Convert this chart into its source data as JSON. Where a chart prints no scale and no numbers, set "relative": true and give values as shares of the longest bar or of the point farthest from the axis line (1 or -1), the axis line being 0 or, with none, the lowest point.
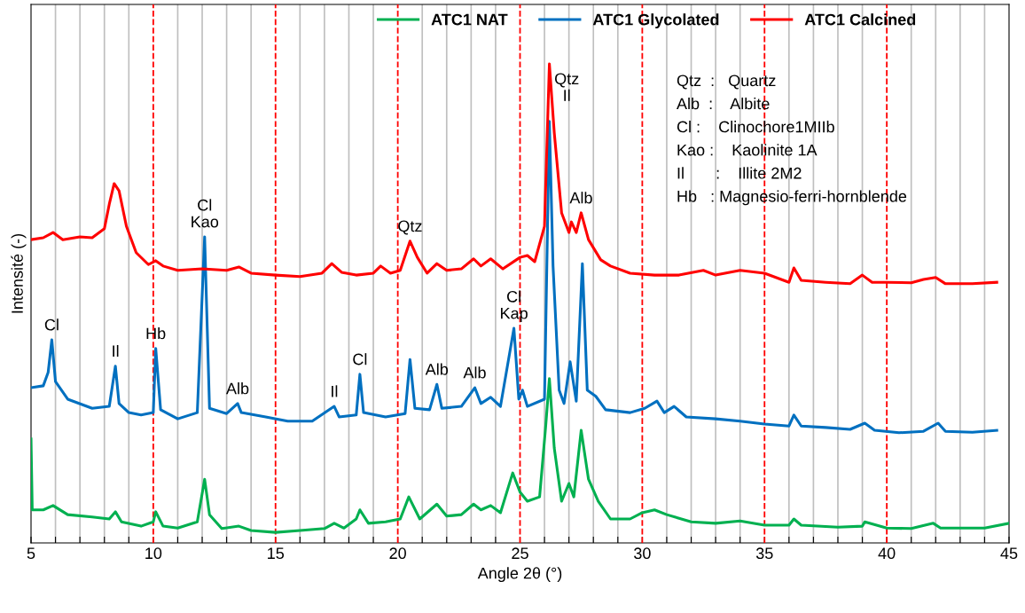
{
  "chart_data": {
    "type": "line",
    "relative": true,
    "xlabel": "Angle 2θ (°)",
    "ylabel": "Intensité (-)",
    "xlim": [
      5,
      45
    ],
    "xticks": [
      5,
      {
        "value": 6,
        "label": null
      },
      {
        "value": 7,
        "label": null
      },
      {
        "value": 8,
        "label": null
      },
      {
        "value": 9,
        "label": null
      },
      10,
      {
        "value": 11,
        "label": null
      },
      {
        "value": 12,
        "label": null
      },
      {
        "value": 13,
        "label": null
      },
      {
        "value": 14,
        "label": null
      },
      15,
      {
        "value": 16,
        "label": null
      },
      {
        "value": 17,
        "label": null
      },
      {
        "value": 18,
        "label": null
      },
      {
        "value": 19,
        "label": null
      },
      20,
      {
        "value": 21,
        "label": null
      },
      {
        "value": 22,
        "label": null
      },
      {
        "value": 23,
        "label": null
      },
      {
        "value": 24,
        "label": null
      },
      25,
      {
        "value": 26,
        "label": null
      },
      {
        "value": 27,
        "label": null
      },
      {
        "value": 28,
        "label": null
      },
      {
        "value": 29,
        "label": null
      },
      30,
      {
        "value": 31,
        "label": null
      },
      {
        "value": 32,
        "label": null
      },
      {
        "value": 33,
        "label": null
      },
      {
        "value": 34,
        "label": null
      },
      35,
      {
        "value": 36,
        "label": null
      },
      {
        "value": 37,
        "label": null
      },
      {
        "value": 38,
        "label": null
      },
      {
        "value": 39,
        "label": null
      },
      40,
      {
        "value": 41,
        "label": null
      },
      {
        "value": 42,
        "label": null
      },
      {
        "value": 43,
        "label": null
      },
      {
        "value": 44,
        "label": null
      },
      45
    ],
    "grid": "x",
    "legend": "top",
    "tick_labels": "x",
    "series": [
      {
        "name": "ATC1 NAT",
        "color": "#00b050",
        "x": [
          5.0,
          5.05,
          5.5,
          5.9,
          6.5,
          7.5,
          8.2,
          8.45,
          8.7,
          9.5,
          10.0,
          10.1,
          10.4,
          11.0,
          11.8,
          12.1,
          12.3,
          12.8,
          13.5,
          14.0,
          15.0,
          16.0,
          17.0,
          17.4,
          17.8,
          18.3,
          18.45,
          18.8,
          19.5,
          20.1,
          20.45,
          20.9,
          21.6,
          22.0,
          22.6,
          23.1,
          23.4,
          23.8,
          24.2,
          24.7,
          25.0,
          25.3,
          25.8,
          26.05,
          26.2,
          26.4,
          26.7,
          27.0,
          27.2,
          27.5,
          27.8,
          28.2,
          28.7,
          29.5,
          30.0,
          30.5,
          31,
          32,
          33,
          34,
          35,
          36,
          36.2,
          36.5,
          38,
          39,
          39.1,
          40,
          41,
          41.9,
          42.2,
          44,
          45
        ],
        "values": [
          0.217,
          0.069,
          0.069,
          0.078,
          0.059,
          0.054,
          0.05,
          0.065,
          0.044,
          0.035,
          0.044,
          0.065,
          0.035,
          0.031,
          0.044,
          0.133,
          0.059,
          0.03,
          0.035,
          0.026,
          0.022,
          0.026,
          0.03,
          0.041,
          0.031,
          0.05,
          0.069,
          0.041,
          0.044,
          0.05,
          0.096,
          0.05,
          0.081,
          0.056,
          0.059,
          0.081,
          0.069,
          0.078,
          0.063,
          0.146,
          0.106,
          0.087,
          0.096,
          0.244,
          0.343,
          0.198,
          0.087,
          0.124,
          0.096,
          0.235,
          0.133,
          0.087,
          0.05,
          0.05,
          0.063,
          0.069,
          0.059,
          0.044,
          0.041,
          0.046,
          0.037,
          0.037,
          0.05,
          0.037,
          0.033,
          0.035,
          0.044,
          0.031,
          0.03,
          0.041,
          0.031,
          0.031,
          0.041
        ]
      },
      {
        "name": "ATC1 Glycolated",
        "color": "#0070c0",
        "x": [
          5.0,
          5.5,
          5.7,
          5.85,
          6.0,
          6.5,
          7.5,
          8.2,
          8.45,
          8.6,
          9.0,
          9.5,
          10.0,
          10.1,
          10.3,
          11.0,
          11.8,
          12.1,
          12.3,
          13.0,
          13.45,
          13.6,
          14.6,
          15.5,
          16.5,
          17.4,
          17.6,
          18.3,
          18.45,
          18.6,
          19.5,
          20.3,
          20.5,
          20.7,
          21.3,
          21.6,
          21.8,
          22.6,
          23.15,
          23.4,
          23.8,
          24.2,
          24.75,
          24.95,
          25.1,
          25.3,
          26.0,
          26.2,
          26.35,
          26.6,
          26.8,
          27.05,
          27.3,
          27.55,
          27.75,
          28.1,
          28.5,
          29.5,
          30.1,
          30.6,
          30.9,
          31.3,
          31.8,
          33,
          34,
          35,
          36.0,
          36.2,
          36.5,
          37.5,
          38.5,
          39.1,
          39.5,
          40.5,
          41.5,
          42.1,
          42.4,
          43.5,
          44.5
        ],
        "values": [
          0.324,
          0.328,
          0.356,
          0.424,
          0.337,
          0.3,
          0.281,
          0.285,
          0.369,
          0.291,
          0.272,
          0.267,
          0.272,
          0.406,
          0.278,
          0.259,
          0.272,
          0.639,
          0.281,
          0.27,
          0.291,
          0.272,
          0.263,
          0.254,
          0.254,
          0.285,
          0.263,
          0.267,
          0.352,
          0.272,
          0.263,
          0.27,
          0.383,
          0.281,
          0.278,
          0.331,
          0.281,
          0.285,
          0.324,
          0.291,
          0.304,
          0.285,
          0.448,
          0.3,
          0.319,
          0.285,
          0.3,
          0.88,
          0.578,
          0.319,
          0.291,
          0.378,
          0.296,
          0.583,
          0.319,
          0.306,
          0.278,
          0.272,
          0.281,
          0.296,
          0.272,
          0.285,
          0.263,
          0.259,
          0.254,
          0.248,
          0.244,
          0.267,
          0.244,
          0.241,
          0.237,
          0.25,
          0.235,
          0.23,
          0.233,
          0.25,
          0.233,
          0.231,
          0.235
        ]
      },
      {
        "name": "ATC1 Calcined",
        "color": "#ff0000",
        "x": [
          5.0,
          5.5,
          5.9,
          6.3,
          7.0,
          7.5,
          8.0,
          8.2,
          8.4,
          8.6,
          8.9,
          9.3,
          9.8,
          10.1,
          10.4,
          11,
          12,
          13,
          13.5,
          14,
          15,
          16,
          16.9,
          17.3,
          17.7,
          18.3,
          19,
          19.3,
          19.7,
          20.1,
          20.5,
          20.8,
          21.2,
          21.6,
          22,
          22.6,
          23.1,
          23.4,
          23.8,
          24.3,
          25,
          25.3,
          25.6,
          26.0,
          26.2,
          26.4,
          26.7,
          27.0,
          27.1,
          27.3,
          27.5,
          27.8,
          28.3,
          28.7,
          29.5,
          30.5,
          31.5,
          32.5,
          33,
          34,
          35,
          36,
          36.2,
          36.5,
          37.5,
          38.5,
          39,
          39.4,
          40,
          41,
          41.5,
          42,
          42.4,
          43.5,
          44.5
        ],
        "values": [
          0.633,
          0.637,
          0.648,
          0.633,
          0.639,
          0.637,
          0.656,
          0.707,
          0.75,
          0.735,
          0.661,
          0.606,
          0.581,
          0.589,
          0.578,
          0.569,
          0.572,
          0.569,
          0.576,
          0.563,
          0.559,
          0.556,
          0.563,
          0.583,
          0.565,
          0.559,
          0.563,
          0.578,
          0.563,
          0.569,
          0.63,
          0.596,
          0.563,
          0.583,
          0.569,
          0.572,
          0.593,
          0.578,
          0.593,
          0.572,
          0.596,
          0.6,
          0.587,
          0.661,
          1.0,
          0.856,
          0.689,
          0.648,
          0.67,
          0.648,
          0.689,
          0.633,
          0.591,
          0.578,
          0.563,
          0.559,
          0.559,
          0.569,
          0.559,
          0.569,
          0.563,
          0.544,
          0.574,
          0.548,
          0.544,
          0.541,
          0.559,
          0.544,
          0.544,
          0.543,
          0.55,
          0.554,
          0.541,
          0.541,
          0.544
        ]
      }
    ],
    "annotations": [
      {
        "text": "Cl",
        "x": 5.85,
        "y": 0.424
      },
      {
        "text": "Il",
        "x": 8.45,
        "y": 0.369
      },
      {
        "text": "Hb",
        "x": 10.1,
        "y": 0.406
      },
      {
        "text": "Cl\nKao",
        "x": 12.1,
        "y": 0.639
      },
      {
        "text": "Alb",
        "x": 13.45,
        "y": 0.291
      },
      {
        "text": "Il",
        "x": 17.4,
        "y": 0.285
      },
      {
        "text": "Cl",
        "x": 18.45,
        "y": 0.352
      },
      {
        "text": "Qtz",
        "x": 20.5,
        "y": 0.63
      },
      {
        "text": "Alb",
        "x": 21.6,
        "y": 0.331
      },
      {
        "text": "Alb",
        "x": 23.15,
        "y": 0.324
      },
      {
        "text": "Cl\nKap",
        "x": 24.75,
        "y": 0.448
      },
      {
        "text": "Qtz\nIl",
        "x": 26.2,
        "y": 1.0
      },
      {
        "text": "Alb",
        "x": 27.5,
        "y": 0.689
      },
      "Qtz  :   Quartz",
      "Alb  :    Albite",
      "Cl :    Clinochore1MIIb",
      "Kao :    Kaolinite 1A",
      "Il       :    Illite 2M2",
      "Hb   : Magnesio-ferri-hornblende"
    ]
  }
}
